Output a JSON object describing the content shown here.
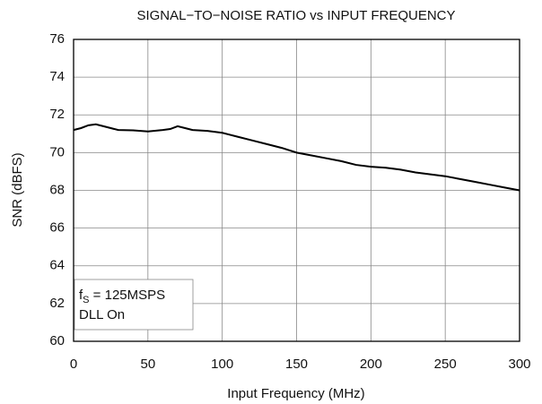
{
  "chart_data": {
    "type": "line",
    "title": "SIGNAL−TO−NOISE RATIO vs INPUT FREQUENCY",
    "x_label": "Input Frequency (MHz)",
    "y_label": "SNR (dBFS)",
    "annotation": {
      "symbol": "f",
      "subscript": "S",
      "text": " = 125MSPS",
      "line2": "DLL On"
    },
    "grid": true,
    "xlim": [
      0,
      300
    ],
    "xticks": [
      0,
      50,
      100,
      150,
      200,
      250,
      300
    ],
    "ylim": [
      60,
      76
    ],
    "yticks": [
      60,
      62,
      64,
      66,
      68,
      70,
      72,
      74,
      76
    ],
    "series": [
      {
        "color": "#000000",
        "x": [
          0,
          5,
          10,
          15,
          20,
          25,
          30,
          40,
          50,
          60,
          65,
          70,
          75,
          80,
          90,
          100,
          110,
          120,
          130,
          140,
          150,
          160,
          170,
          180,
          190,
          200,
          210,
          220,
          230,
          240,
          250,
          260,
          270,
          280,
          290,
          300
        ],
        "values": [
          71.2,
          71.3,
          71.45,
          71.5,
          71.4,
          71.3,
          71.2,
          71.18,
          71.12,
          71.2,
          71.25,
          71.4,
          71.3,
          71.2,
          71.15,
          71.05,
          70.85,
          70.65,
          70.45,
          70.25,
          70.0,
          69.85,
          69.7,
          69.55,
          69.35,
          69.25,
          69.2,
          69.1,
          68.95,
          68.85,
          68.75,
          68.6,
          68.45,
          68.3,
          68.15,
          68.0
        ]
      }
    ]
  }
}
